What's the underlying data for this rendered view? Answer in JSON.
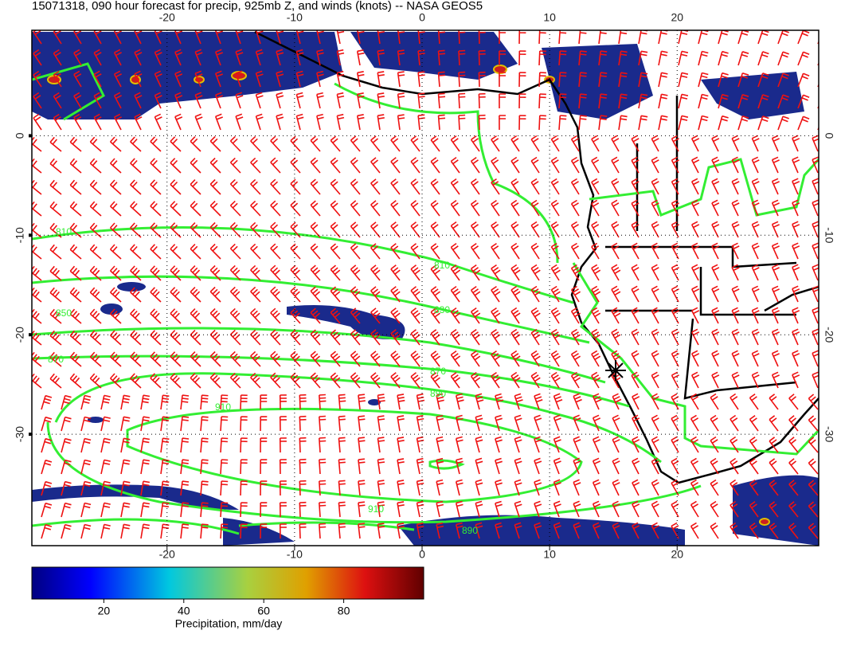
{
  "title": "15071318, 090 hour forecast for precip, 925mb Z, and winds (knots) -- NASA GEOS5",
  "map": {
    "lonlim": [
      -30.6,
      31.1
    ],
    "latlim": [
      10.6,
      -41.2
    ],
    "xticks": [
      -20,
      -10,
      0,
      10,
      20
    ],
    "yticks": [
      0,
      -10,
      -20,
      -30
    ],
    "grid": true,
    "contour_color": "#33ee33",
    "wind_color": "#ee1111",
    "contour_levels": [
      810,
      830,
      850,
      870,
      890,
      910
    ]
  },
  "colorbar": {
    "range": [
      2,
      100
    ],
    "ticks": [
      20,
      40,
      60,
      80
    ],
    "label": "Precipitation, mm/day"
  }
}
